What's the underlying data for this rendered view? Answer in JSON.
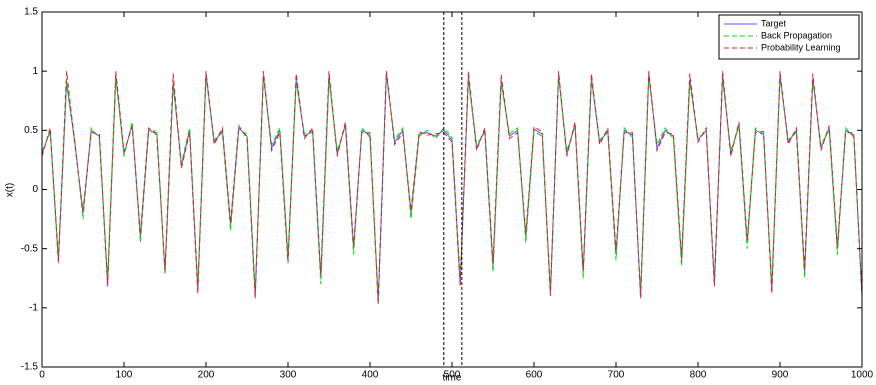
{
  "chart_data": {
    "type": "line",
    "xlabel": "time",
    "ylabel": "x(t)",
    "xlim": [
      0,
      1000
    ],
    "ylim": [
      -1.5,
      1.5
    ],
    "xticks": [
      0,
      100,
      200,
      300,
      400,
      500,
      600,
      700,
      800,
      900,
      1000
    ],
    "yticks": [
      -1.5,
      -1,
      -0.5,
      0,
      0.5,
      1,
      1.5
    ],
    "legend": "upper right",
    "grid": false,
    "vlines": [
      490,
      512
    ],
    "x": [
      0,
      10,
      20,
      30,
      40,
      50,
      60,
      70,
      80,
      90,
      100,
      110,
      120,
      130,
      140,
      150,
      160,
      170,
      180,
      190,
      200,
      210,
      220,
      230,
      240,
      250,
      260,
      270,
      280,
      290,
      300,
      310,
      320,
      330,
      340,
      350,
      360,
      370,
      380,
      390,
      400,
      410,
      420,
      430,
      440,
      450,
      460,
      470,
      480,
      490,
      500,
      510,
      520,
      530,
      540,
      550,
      560,
      570,
      580,
      590,
      600,
      610,
      620,
      630,
      640,
      650,
      660,
      670,
      680,
      690,
      700,
      710,
      720,
      730,
      740,
      750,
      760,
      770,
      780,
      790,
      800,
      810,
      820,
      830,
      840,
      850,
      860,
      870,
      880,
      890,
      900,
      910,
      920,
      930,
      940,
      950,
      960,
      970,
      980,
      990,
      1000
    ],
    "series": [
      {
        "name": "Target",
        "color": "#5555ff",
        "style": "solid",
        "values": [
          0.3,
          0.5,
          -0.6,
          0.9,
          0.4,
          -0.2,
          0.5,
          0.45,
          -0.8,
          0.95,
          0.3,
          0.55,
          -0.4,
          0.5,
          0.48,
          -0.7,
          0.9,
          0.2,
          0.5,
          -0.85,
          0.98,
          0.4,
          0.5,
          -0.3,
          0.52,
          0.45,
          -0.9,
          0.97,
          0.35,
          0.5,
          -0.6,
          0.93,
          0.45,
          0.5,
          -0.75,
          0.96,
          0.3,
          0.55,
          -0.5,
          0.5,
          0.46,
          -0.95,
          0.99,
          0.4,
          0.5,
          -0.2,
          0.47,
          0.48,
          0.45,
          0.5,
          0.42,
          -0.8,
          0.95,
          0.35,
          0.5,
          -0.65,
          0.92,
          0.45,
          0.5,
          -0.4,
          0.51,
          0.47,
          -0.88,
          0.97,
          0.3,
          0.55,
          -0.7,
          0.94,
          0.4,
          0.5,
          -0.55,
          0.5,
          0.46,
          -0.9,
          0.98,
          0.35,
          0.5,
          0.45,
          -0.6,
          0.93,
          0.42,
          0.5,
          -0.8,
          0.96,
          0.3,
          0.55,
          -0.45,
          0.5,
          0.47,
          -0.85,
          0.97,
          0.4,
          0.5,
          -0.7,
          0.94,
          0.35,
          0.52,
          -0.5,
          0.5,
          0.46,
          -0.9
        ]
      },
      {
        "name": "Back Propagation",
        "color": "#00dd00",
        "style": "dashed",
        "values": [
          0.32,
          0.48,
          -0.55,
          0.92,
          0.42,
          -0.25,
          0.52,
          0.43,
          -0.75,
          0.97,
          0.28,
          0.57,
          -0.45,
          0.48,
          0.5,
          -0.72,
          0.88,
          0.22,
          0.52,
          -0.8,
          0.95,
          0.42,
          0.48,
          -0.35,
          0.5,
          0.47,
          -0.85,
          0.95,
          0.38,
          0.52,
          -0.55,
          0.9,
          0.47,
          0.48,
          -0.8,
          0.93,
          0.33,
          0.53,
          -0.55,
          0.52,
          0.44,
          -0.92,
          0.96,
          0.42,
          0.52,
          -0.25,
          0.45,
          0.5,
          0.43,
          0.52,
          0.44,
          -0.75,
          0.92,
          0.38,
          0.48,
          -0.7,
          0.9,
          0.47,
          0.52,
          -0.45,
          0.49,
          0.45,
          -0.85,
          0.95,
          0.33,
          0.53,
          -0.75,
          0.92,
          0.42,
          0.48,
          -0.6,
          0.52,
          0.44,
          -0.88,
          0.95,
          0.38,
          0.52,
          0.43,
          -0.65,
          0.9,
          0.44,
          0.48,
          -0.75,
          0.93,
          0.33,
          0.53,
          -0.5,
          0.52,
          0.45,
          -0.8,
          0.95,
          0.42,
          0.48,
          -0.75,
          0.92,
          0.38,
          0.5,
          -0.55,
          0.52,
          0.44,
          -0.88
        ]
      },
      {
        "name": "Probability Learning",
        "color": "#dd2222",
        "style": "dashed",
        "values": [
          0.28,
          0.52,
          -0.62,
          1.0,
          0.38,
          -0.18,
          0.48,
          0.47,
          -0.82,
          1.0,
          0.32,
          0.53,
          -0.38,
          0.52,
          0.46,
          -0.68,
          0.98,
          0.18,
          0.48,
          -0.88,
          1.0,
          0.38,
          0.52,
          -0.28,
          0.54,
          0.43,
          -0.92,
          1.0,
          0.33,
          0.48,
          -0.62,
          0.98,
          0.43,
          0.52,
          -0.72,
          1.0,
          0.28,
          0.57,
          -0.48,
          0.48,
          0.48,
          -0.97,
          1.0,
          0.38,
          0.48,
          -0.18,
          0.49,
          0.46,
          0.47,
          0.48,
          0.4,
          -0.82,
          1.0,
          0.33,
          0.52,
          -0.62,
          0.97,
          0.43,
          0.48,
          -0.38,
          0.53,
          0.49,
          -0.9,
          1.0,
          0.28,
          0.57,
          -0.68,
          0.98,
          0.38,
          0.52,
          -0.52,
          0.48,
          0.48,
          -0.92,
          1.0,
          0.33,
          0.48,
          0.47,
          -0.58,
          0.98,
          0.4,
          0.52,
          -0.82,
          1.0,
          0.28,
          0.57,
          -0.43,
          0.48,
          0.49,
          -0.88,
          1.0,
          0.38,
          0.52,
          -0.68,
          0.98,
          0.33,
          0.54,
          -0.48,
          0.48,
          0.48,
          -0.92
        ]
      }
    ]
  }
}
